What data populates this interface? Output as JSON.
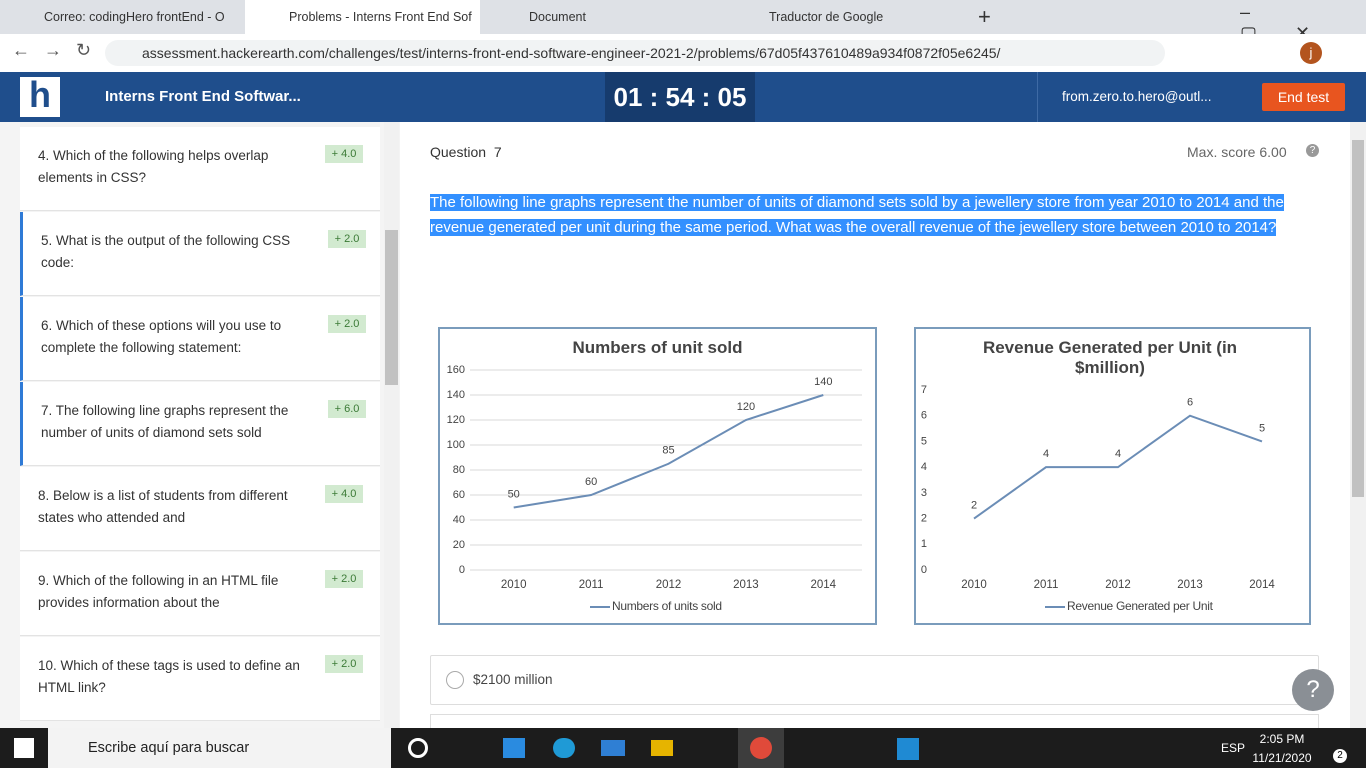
{
  "browser": {
    "tabs": [
      "Correo: codingHero frontEnd - O",
      "Problems - Interns Front End Sof",
      "Document",
      "Traductor de Google"
    ],
    "url": "assessment.hackerearth.com/challenges/test/interns-front-end-software-engineer-2021-2/problems/67d05f437610489a934f0872f05e6245/",
    "profile": "j"
  },
  "header": {
    "logo": "h",
    "test_name": "Interns Front End Softwar...",
    "timer": "01 : 54 : 05",
    "user": "from.zero.to.hero@outl...",
    "end_button": "End test"
  },
  "sidebar": {
    "questions": [
      {
        "number": "4.",
        "text": "Which of the following helps overlap elements in CSS?",
        "score": "+ 4.0"
      },
      {
        "number": "5.",
        "text": "What is the output of the following CSS code:",
        "score": "+ 2.0"
      },
      {
        "number": "6.",
        "text": "Which of these options will you use to complete the following statement:",
        "score": "+ 2.0"
      },
      {
        "number": "7.",
        "text": "The following line graphs represent the number of units of diamond sets sold",
        "score": "+ 6.0"
      },
      {
        "number": "8.",
        "text": "Below is a list of students from different states who attended and",
        "score": "+ 4.0"
      },
      {
        "number": "9.",
        "text": "Which of the following in an HTML file provides information about the",
        "score": "+ 2.0"
      },
      {
        "number": "10.",
        "text": "Which of these tags is used to define an HTML link?",
        "score": "+ 2.0"
      }
    ]
  },
  "question": {
    "label": "Question",
    "number": 7,
    "max_score": "Max. score 6.00",
    "text": "The following line graphs represent the number of units of diamond sets sold by a jewellery store from year 2010 to 2014 and the revenue generated per unit during the same period. What was the overall revenue of the jewellery store between 2010 to 2014?",
    "options": [
      "$2100 million"
    ]
  },
  "chart_data": [
    {
      "type": "line",
      "title": "Numbers of unit sold",
      "categories": [
        "2010",
        "2011",
        "2012",
        "2013",
        "2014"
      ],
      "series": [
        {
          "name": "Numbers of units sold",
          "color": "#6b8db6",
          "values": [
            50,
            60,
            85,
            120,
            140
          ]
        }
      ],
      "ylim": [
        0,
        160
      ],
      "yticks": [
        0,
        20,
        40,
        60,
        80,
        100,
        120,
        140,
        160
      ],
      "grid": true
    },
    {
      "type": "line",
      "title": "Revenue Generated per Unit (in $million)",
      "categories": [
        "2010",
        "2011",
        "2012",
        "2013",
        "2014"
      ],
      "series": [
        {
          "name": "Revenue Generated per Unit",
          "color": "#6b8db6",
          "values": [
            2,
            4,
            4,
            6,
            5
          ]
        }
      ],
      "ylim": [
        0,
        7
      ],
      "yticks": [
        0,
        1,
        2,
        3,
        4,
        5,
        6,
        7
      ],
      "grid": false
    }
  ],
  "taskbar": {
    "search": "Escribe aquí para buscar",
    "language": "ESP",
    "time": "2:05 PM",
    "date": "11/21/2020",
    "notifications": "2"
  }
}
